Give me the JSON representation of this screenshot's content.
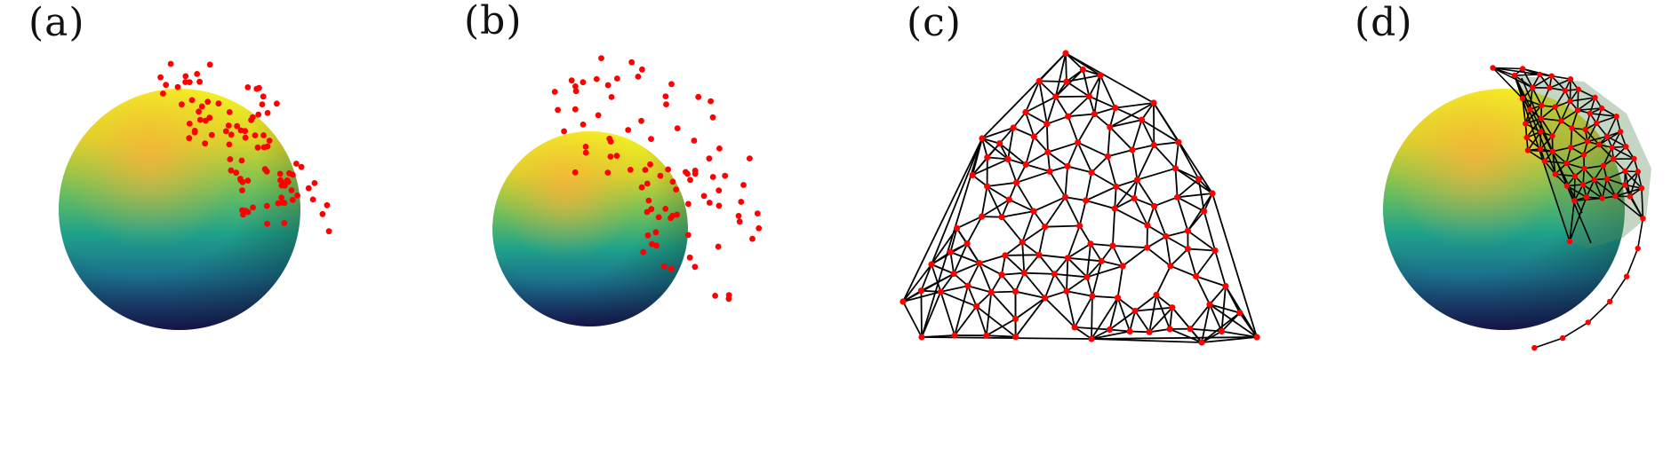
{
  "figure": {
    "panels": [
      {
        "label": "(a)"
      },
      {
        "label": "(b)"
      },
      {
        "label": "(c)"
      },
      {
        "label": "(d)"
      }
    ],
    "colors": {
      "points": "#ff0000",
      "mesh_edges": "#000000",
      "sphere_top": "#f4f223",
      "sphere_highlight": "#ffb03a",
      "sphere_mid": "#1fa28a",
      "sphere_bottom": "#1a1a5a"
    }
  }
}
